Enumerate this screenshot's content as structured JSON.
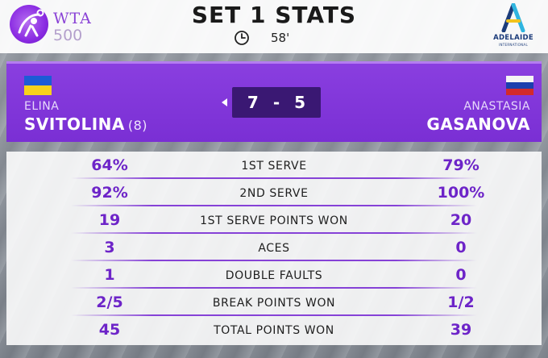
{
  "header": {
    "title": "SET 1 STATS",
    "duration": "58'",
    "wta_brand": "WTA",
    "wta_tier": "500",
    "tournament_name": "ADELAIDE",
    "tournament_sub": "INTERNATIONAL"
  },
  "players": {
    "p1": {
      "first": "ELINA",
      "last": "SVITOLINA",
      "seed": "(8)",
      "country": "Ukraine"
    },
    "p2": {
      "first": "ANASTASIA",
      "last": "GASANOVA",
      "country": "Russia"
    }
  },
  "score": {
    "p1": "7",
    "sep": "-",
    "p2": "5"
  },
  "stats": [
    {
      "label": "1ST SERVE",
      "p1": "64%",
      "p2": "79%"
    },
    {
      "label": "2ND SERVE",
      "p1": "92%",
      "p2": "100%"
    },
    {
      "label": "1ST SERVE POINTS WON",
      "p1": "19",
      "p2": "20"
    },
    {
      "label": "ACES",
      "p1": "3",
      "p2": "0"
    },
    {
      "label": "DOUBLE FAULTS",
      "p1": "1",
      "p2": "0"
    },
    {
      "label": "BREAK POINTS WON",
      "p1": "2/5",
      "p2": "1/2"
    },
    {
      "label": "TOTAL POINTS WON",
      "p1": "45",
      "p2": "39"
    }
  ],
  "colors": {
    "accent_purple": "#7a2fd4",
    "value_purple": "#6d24c8",
    "score_box": "#3a1873"
  },
  "icons": {
    "clock": "clock-icon",
    "serve": "serve-indicator-icon"
  }
}
